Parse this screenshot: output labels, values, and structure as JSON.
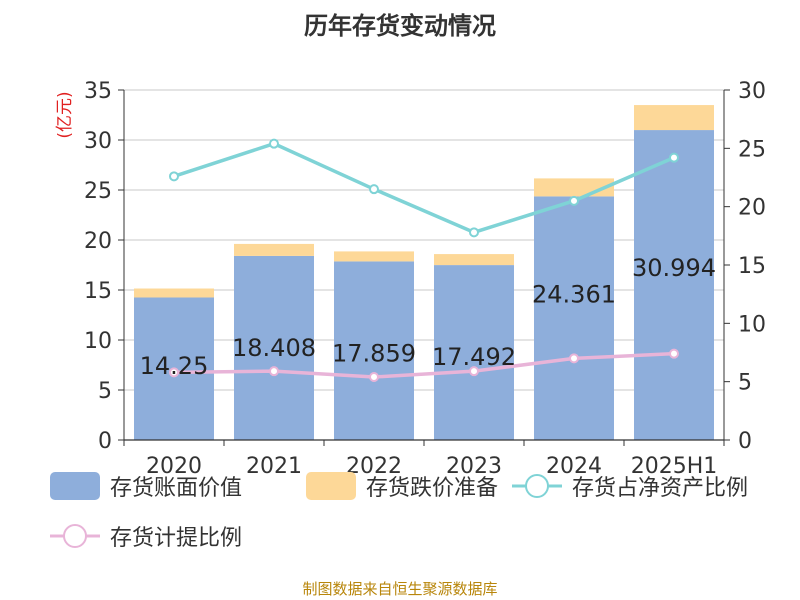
{
  "title": "历年存货变动情况",
  "footer": "制图数据来自恒生聚源数据库",
  "chart_data": {
    "type": "bar",
    "title": "历年存货变动情况",
    "categories": [
      "2020",
      "2021",
      "2022",
      "2023",
      "2024",
      "2025H1"
    ],
    "y_left": {
      "label": "(亿元)",
      "range": [
        0,
        35
      ],
      "ticks": [
        "0",
        "5",
        "10",
        "15",
        "20",
        "25",
        "30",
        "35"
      ]
    },
    "y_right": {
      "range": [
        0,
        30
      ],
      "ticks": [
        "0",
        "5",
        "10",
        "15",
        "20",
        "25",
        "30"
      ]
    },
    "grid": true,
    "legend_position": "bottom",
    "bar_series": [
      {
        "name": "存货账面价值",
        "color": "#8eaedb",
        "values": [
          14.25,
          18.408,
          17.859,
          17.492,
          24.361,
          30.994
        ],
        "labels": [
          "14.25",
          "18.408",
          "17.859",
          "17.492",
          "24.361",
          "30.994"
        ]
      },
      {
        "name": "存货跌价准备",
        "color": "#fdd898",
        "values": [
          0.9,
          1.2,
          1.0,
          1.1,
          1.8,
          2.5
        ]
      }
    ],
    "line_series": [
      {
        "name": "存货占净资产比例",
        "color": "#7fd3d6",
        "axis": "right",
        "values": [
          22.6,
          25.4,
          21.5,
          17.8,
          20.5,
          24.2
        ]
      },
      {
        "name": "存货计提比例",
        "color": "#e8b4d8",
        "axis": "right",
        "values": [
          5.8,
          5.9,
          5.4,
          5.9,
          7.0,
          7.4
        ]
      }
    ]
  },
  "legend": {
    "items": [
      {
        "label": "存货账面价值",
        "kind": "bar",
        "color": "#8eaedb"
      },
      {
        "label": "存货跌价准备",
        "kind": "bar",
        "color": "#fdd898"
      },
      {
        "label": "存货占净资产比例",
        "kind": "line",
        "color": "#7fd3d6"
      },
      {
        "label": "存货计提比例",
        "kind": "line",
        "color": "#e8b4d8"
      }
    ]
  },
  "colors": {
    "axis": "#333333",
    "grid": "#c8c8c8",
    "unit_label": "#e02020"
  }
}
